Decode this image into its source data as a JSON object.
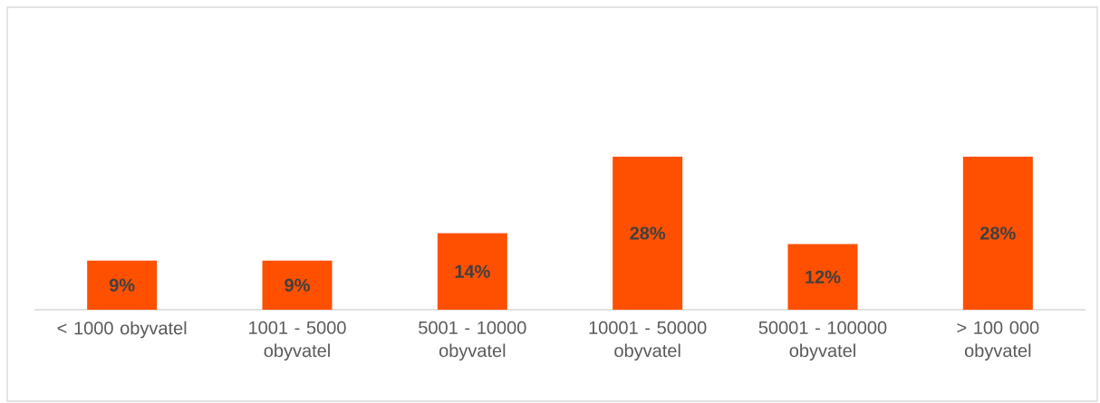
{
  "chart_data": {
    "type": "bar",
    "categories": [
      "< 1000 obyvatel",
      "1001 - 5000 obyvatel",
      "5001 - 10000 obyvatel",
      "10001 - 50000 obyvatel",
      "50001 - 100000 obyvatel",
      "> 100 000 obyvatel"
    ],
    "values": [
      9,
      9,
      14,
      28,
      12,
      28
    ],
    "value_labels": [
      "9%",
      "9%",
      "14%",
      "28%",
      "12%",
      "28%"
    ],
    "color": "#ff5000"
  }
}
